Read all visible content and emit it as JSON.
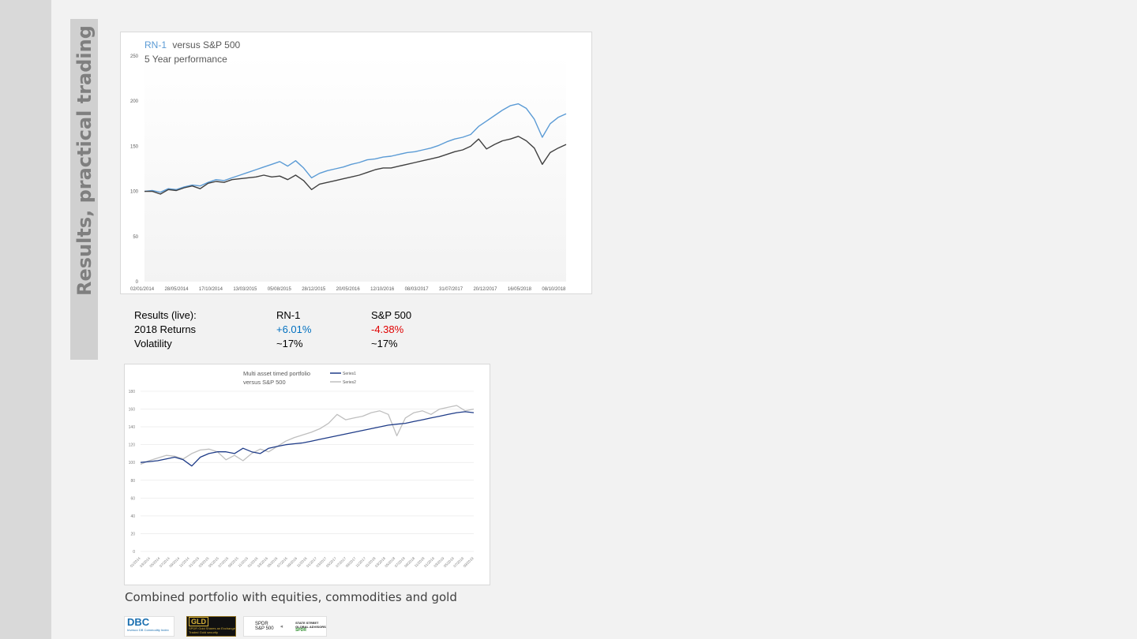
{
  "slide": {
    "title": "Results, practical trading",
    "caption": "Combined portfolio with equities, commodities and gold"
  },
  "results": {
    "header": [
      "Results (live):",
      "RN-1",
      "S&P 500"
    ],
    "returns": [
      "2018 Returns",
      "+6.01%",
      "-4.38%"
    ],
    "volatility": [
      "Volatility",
      "~17%",
      "~17%"
    ]
  },
  "logos": {
    "dbc": {
      "text": "DBC",
      "sub": "Invesco DB Commodity Index"
    },
    "gld": {
      "text": "GLD",
      "sub": "SPDR Gold Shares an Exchange Traded Gold security"
    },
    "spdr": {
      "text": "SPDR S&P 500",
      "ss1": "STATE STREET GLOBAL ADVISORS",
      "ss2": "SPDR"
    }
  },
  "chart_data": [
    {
      "type": "line",
      "title_part1": "RN-1",
      "title_part2": "versus S&P 500",
      "subtitle": "5 Year performance",
      "ylim": [
        0,
        250
      ],
      "yticks": [
        0,
        50,
        100,
        150,
        200,
        250
      ],
      "grid": false,
      "x_tick_labels": [
        "02/01/2014",
        "28/05/2014",
        "17/10/2014",
        "13/03/2015",
        "05/08/2015",
        "28/12/2015",
        "20/05/2016",
        "12/10/2016",
        "08/03/2017",
        "31/07/2017",
        "20/12/2017",
        "16/05/2018",
        "08/10/2018"
      ],
      "colors": {
        "rn1": "#5b9bd5",
        "sp500": "#404040"
      },
      "series": [
        {
          "key": "rn1",
          "values": [
            100,
            101,
            99,
            103,
            102,
            105,
            107,
            106,
            110,
            113,
            112,
            115,
            118,
            121,
            124,
            127,
            130,
            133,
            128,
            134,
            126,
            115,
            120,
            123,
            125,
            127,
            130,
            132,
            135,
            136,
            138,
            139,
            141,
            143,
            144,
            146,
            148,
            151,
            155,
            158,
            160,
            163,
            172,
            178,
            184,
            190,
            195,
            197,
            192,
            180,
            160,
            175,
            182,
            186
          ]
        },
        {
          "key": "sp500",
          "values": [
            100,
            100,
            97,
            102,
            101,
            104,
            106,
            103,
            109,
            111,
            110,
            113,
            114,
            115,
            116,
            118,
            116,
            117,
            113,
            118,
            112,
            102,
            108,
            110,
            112,
            114,
            116,
            118,
            121,
            124,
            126,
            126,
            128,
            130,
            132,
            134,
            136,
            138,
            141,
            144,
            146,
            150,
            158,
            147,
            152,
            156,
            158,
            161,
            156,
            148,
            130,
            143,
            148,
            152
          ]
        }
      ]
    },
    {
      "type": "line",
      "title_line1": "Multi asset timed portfolio",
      "title_line2": "versus S&P 500",
      "ylim": [
        0,
        180
      ],
      "yticks": [
        0,
        20,
        40,
        60,
        80,
        100,
        120,
        140,
        160,
        180
      ],
      "grid": true,
      "legend": "top-right",
      "x_tick_labels": [
        "01/2014",
        "03/2014",
        "05/2014",
        "07/2014",
        "09/2014",
        "11/2014",
        "01/2015",
        "03/2015",
        "05/2015",
        "07/2015",
        "09/2015",
        "11/2015",
        "01/2016",
        "03/2016",
        "05/2016",
        "07/2016",
        "09/2016",
        "11/2016",
        "01/2017",
        "03/2017",
        "05/2017",
        "07/2017",
        "09/2017",
        "11/2017",
        "01/2018",
        "03/2018",
        "05/2018",
        "07/2018",
        "09/2018",
        "11/2018",
        "01/2019",
        "03/2019",
        "05/2019",
        "07/2019",
        "09/2019"
      ],
      "colors": {
        "series1": "#1f3c88",
        "series2": "#bfbfbf"
      },
      "series": [
        {
          "name": "Series1",
          "values": [
            100,
            101,
            102,
            104,
            106,
            103,
            96,
            106,
            110,
            112,
            112,
            110,
            116,
            112,
            110,
            116,
            118,
            120,
            121,
            122,
            124,
            126,
            128,
            130,
            132,
            134,
            136,
            138,
            140,
            142,
            143,
            144,
            146,
            148,
            150,
            152,
            154,
            156,
            157,
            156
          ]
        },
        {
          "name": "Series2",
          "values": [
            98,
            102,
            105,
            108,
            107,
            104,
            110,
            114,
            115,
            112,
            103,
            108,
            102,
            110,
            115,
            112,
            118,
            124,
            128,
            131,
            134,
            138,
            144,
            154,
            148,
            150,
            152,
            156,
            158,
            154,
            130,
            150,
            156,
            158,
            154,
            160,
            162,
            164,
            158,
            160
          ]
        }
      ]
    }
  ]
}
